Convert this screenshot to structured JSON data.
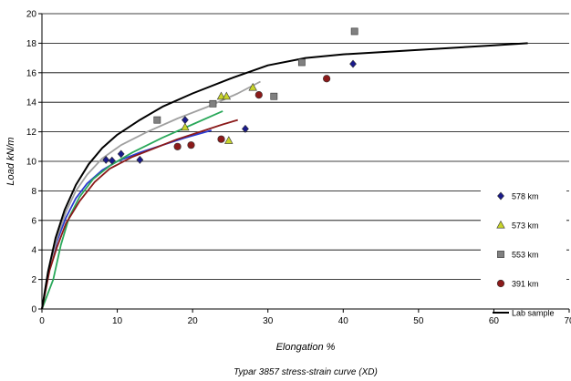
{
  "chart_data": {
    "type": "scatter",
    "caption": "Typar 3857 stress-strain curve (XD)",
    "xlabel": "Elongation %",
    "ylabel": "Load kN/m",
    "xlim": [
      0,
      70
    ],
    "ylim": [
      0,
      20
    ],
    "x_ticks": [
      "0",
      "10",
      "20",
      "30",
      "40",
      "50",
      "60",
      "70"
    ],
    "y_ticks": [
      "0",
      "2",
      "4",
      "6",
      "8",
      "10",
      "12",
      "14",
      "16",
      "18",
      "20"
    ],
    "grid": "horizontal",
    "legend_position": "bottom-right",
    "series": [
      {
        "name": "578 km",
        "marker": "diamond",
        "color": "#1a1a8c",
        "points": [
          [
            8.5,
            10.1
          ],
          [
            9.3,
            10.05
          ],
          [
            10.5,
            10.5
          ],
          [
            13,
            10.1
          ],
          [
            19,
            12.8
          ],
          [
            27,
            12.2
          ],
          [
            41.3,
            16.6
          ]
        ],
        "fit": [
          [
            0,
            0
          ],
          [
            1,
            2.8
          ],
          [
            2,
            4.6
          ],
          [
            3.2,
            6.2
          ],
          [
            4.5,
            7.5
          ],
          [
            6,
            8.5
          ],
          [
            8,
            9.4
          ],
          [
            10,
            10
          ],
          [
            13,
            10.6
          ],
          [
            16,
            11.1
          ],
          [
            19,
            11.6
          ],
          [
            22.5,
            12.1
          ]
        ]
      },
      {
        "name": "573 km",
        "marker": "triangle",
        "color": "#c8d42a",
        "points": [
          [
            19,
            12.3
          ],
          [
            23.8,
            14.4
          ],
          [
            24.5,
            14.4
          ],
          [
            24.8,
            11.4
          ],
          [
            28,
            15
          ]
        ],
        "fit": [
          [
            0,
            0
          ],
          [
            1.5,
            2
          ],
          [
            2.5,
            4.3
          ],
          [
            3.6,
            6.2
          ],
          [
            5,
            7.6
          ],
          [
            6.8,
            8.8
          ],
          [
            9,
            9.7
          ],
          [
            12,
            10.6
          ],
          [
            16,
            11.6
          ],
          [
            20,
            12.5
          ],
          [
            24,
            13.4
          ]
        ]
      },
      {
        "name": "553 km",
        "marker": "square",
        "color": "#808080",
        "points": [
          [
            15.3,
            12.8
          ],
          [
            22.7,
            13.9
          ],
          [
            30.8,
            14.4
          ],
          [
            34.5,
            16.7
          ],
          [
            41.5,
            18.8
          ]
        ],
        "fit": [
          [
            0,
            0
          ],
          [
            1,
            2.8
          ],
          [
            2,
            4.8
          ],
          [
            3.2,
            6.6
          ],
          [
            4.5,
            8
          ],
          [
            6,
            9.1
          ],
          [
            8,
            10.2
          ],
          [
            10.5,
            11.1
          ],
          [
            14,
            12
          ],
          [
            18,
            12.9
          ],
          [
            22,
            13.7
          ],
          [
            26,
            14.6
          ],
          [
            29,
            15.4
          ]
        ]
      },
      {
        "name": "391 km",
        "marker": "circle",
        "color": "#8b1a1a",
        "points": [
          [
            18,
            11
          ],
          [
            19.8,
            11.1
          ],
          [
            23.8,
            11.5
          ],
          [
            28.8,
            14.5
          ],
          [
            37.8,
            15.6
          ]
        ],
        "fit": [
          [
            0,
            0
          ],
          [
            1,
            2.6
          ],
          [
            2,
            4.2
          ],
          [
            3.2,
            5.8
          ],
          [
            5,
            7.3
          ],
          [
            7,
            8.6
          ],
          [
            9,
            9.5
          ],
          [
            12,
            10.3
          ],
          [
            15,
            10.9
          ],
          [
            18,
            11.5
          ],
          [
            21,
            12
          ],
          [
            24,
            12.5
          ],
          [
            26,
            12.8
          ]
        ]
      },
      {
        "name": "Lab sample",
        "marker": "line",
        "color": "#000000",
        "fit": [
          [
            0,
            0
          ],
          [
            0.8,
            2.5
          ],
          [
            1.8,
            4.8
          ],
          [
            3,
            6.7
          ],
          [
            4.5,
            8.4
          ],
          [
            6.2,
            9.8
          ],
          [
            8,
            10.9
          ],
          [
            10,
            11.8
          ],
          [
            13,
            12.8
          ],
          [
            16,
            13.7
          ],
          [
            20,
            14.6
          ],
          [
            25,
            15.6
          ],
          [
            30,
            16.5
          ],
          [
            35,
            17
          ],
          [
            40,
            17.25
          ],
          [
            50,
            17.55
          ],
          [
            60,
            17.85
          ],
          [
            64.5,
            18
          ]
        ]
      }
    ]
  }
}
